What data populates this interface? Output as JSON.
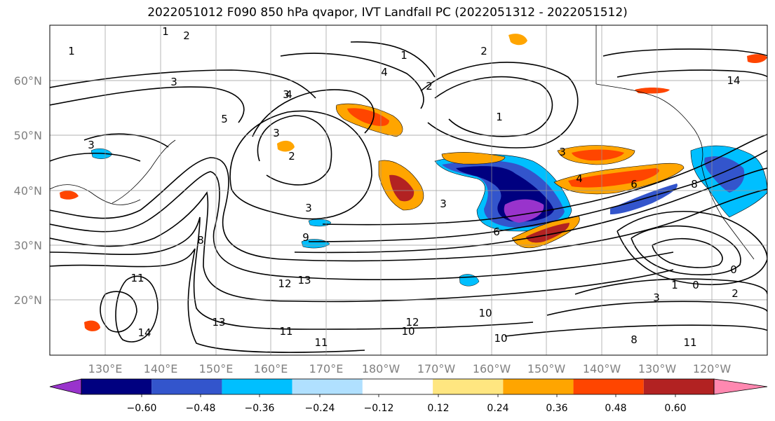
{
  "title": "2022051012 F090 850 hPa qvapor, IVT Landfall PC (2022051312 - 2022051512)",
  "lat_labels": [
    "60°N",
    "50°N",
    "40°N",
    "30°N",
    "20°N"
  ],
  "lon_labels": [
    "130°E",
    "140°E",
    "150°E",
    "160°E",
    "170°E",
    "180°W",
    "170°W",
    "160°W",
    "150°W",
    "140°W",
    "130°W",
    "120°W"
  ],
  "colorbar": {
    "colors": [
      "#9933cc",
      "#000080",
      "#3355cc",
      "#00bfff",
      "#b0e0ff",
      "#ffffff",
      "#ffe680",
      "#ffa500",
      "#ff4500",
      "#b22222",
      "#ff88b0"
    ],
    "tick_labels": [
      "−0.60",
      "−0.48",
      "−0.36",
      "−0.24",
      "−0.12",
      "0.12",
      "0.24",
      "0.36",
      "0.48",
      "0.60"
    ]
  },
  "contour_labels": [
    "1",
    "2",
    "1",
    "1",
    "2",
    "3",
    "4",
    "3",
    "4",
    "2",
    "5",
    "3",
    "3",
    "2",
    "3",
    "3",
    "4",
    "6",
    "8",
    "1",
    "3",
    "6",
    "8",
    "9",
    "11",
    "12",
    "13",
    "13",
    "14",
    "11",
    "10",
    "10",
    "8",
    "12",
    "10",
    "11",
    "14",
    "1",
    "0",
    "3",
    "0",
    "2",
    "11"
  ]
}
